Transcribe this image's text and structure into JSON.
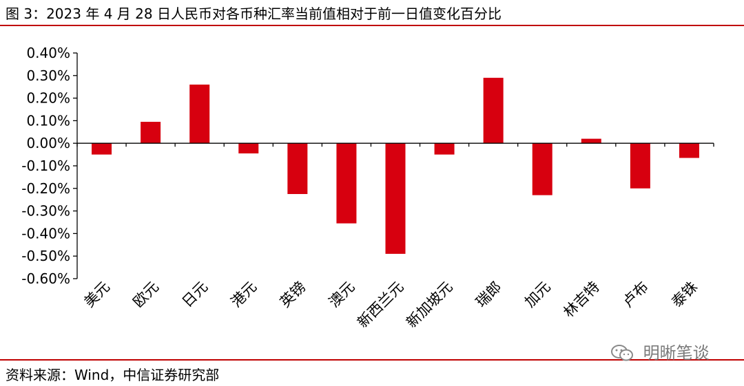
{
  "figure": {
    "title": "图 3：2023 年 4 月 28 日人民币对各币种汇率当前值相对于前一日值变化百分比",
    "source": "资料来源：Wind，中信证券研究部",
    "watermark": "明晰笔谈",
    "accent_color": "#c00000"
  },
  "chart_data": {
    "type": "bar",
    "title": "",
    "xlabel": "",
    "ylabel": "",
    "ylim": [
      -0.6,
      0.4
    ],
    "yticks": [
      0.4,
      0.3,
      0.2,
      0.1,
      0.0,
      -0.1,
      -0.2,
      -0.3,
      -0.4,
      -0.5,
      -0.6
    ],
    "ytick_labels": [
      "0.40%",
      "0.30%",
      "0.20%",
      "0.10%",
      "0.00%",
      "-0.10%",
      "-0.20%",
      "-0.30%",
      "-0.40%",
      "-0.50%",
      "-0.60%"
    ],
    "y_unit": "%",
    "grid": false,
    "legend": "none",
    "bar_color": "#d7000f",
    "categories": [
      "美元",
      "欧元",
      "日元",
      "港元",
      "英镑",
      "澳元",
      "新西兰元",
      "新加坡元",
      "瑞郎",
      "加元",
      "林吉特",
      "卢布",
      "泰铢"
    ],
    "values": [
      -0.05,
      0.095,
      0.26,
      -0.045,
      -0.225,
      -0.355,
      -0.49,
      -0.05,
      0.29,
      -0.23,
      0.02,
      -0.2,
      -0.065
    ]
  }
}
